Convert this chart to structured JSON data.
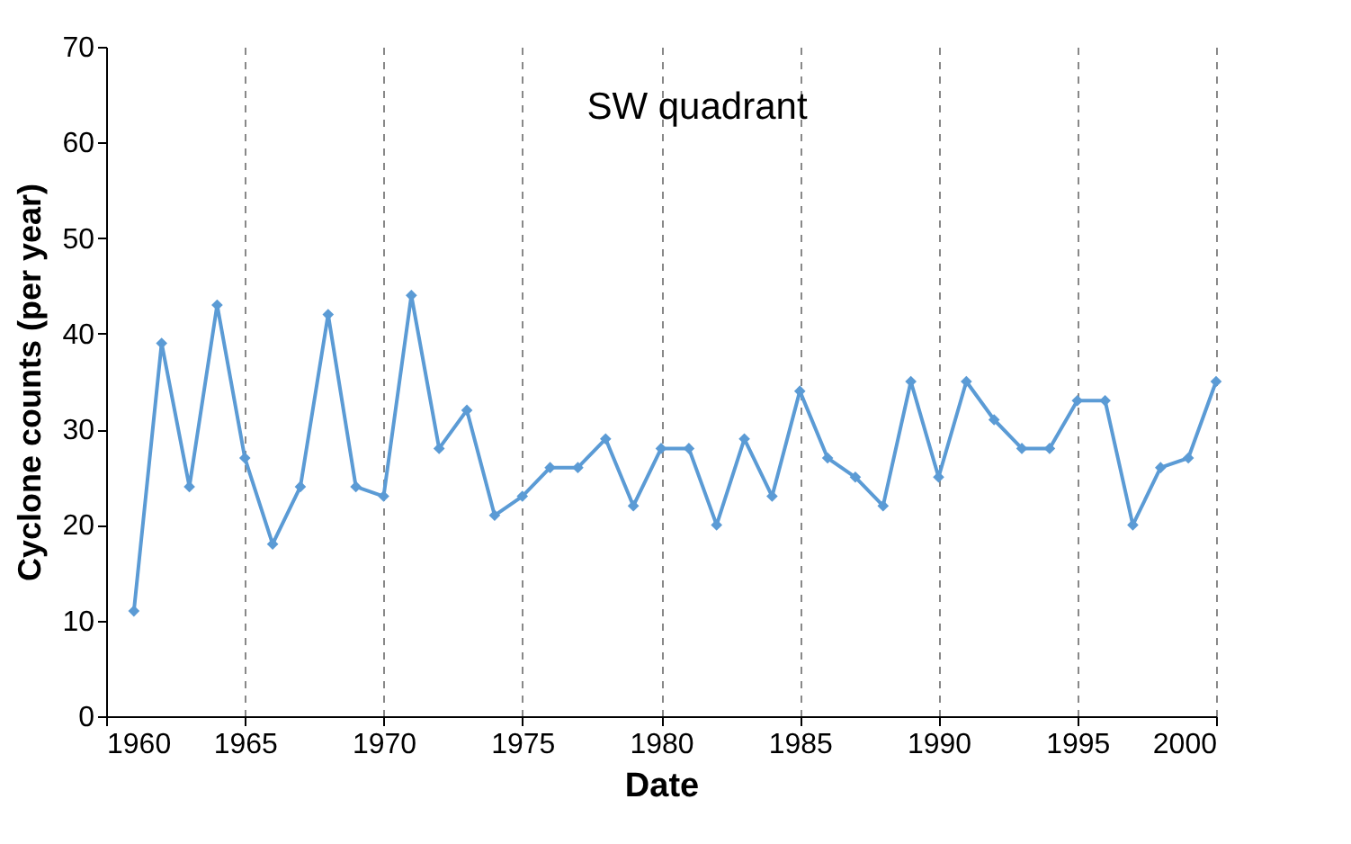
{
  "chart_data": {
    "type": "line",
    "title": "SW quadrant",
    "xlabel": "Date",
    "ylabel": "Cyclone counts (per year)",
    "x": [
      1961,
      1962,
      1963,
      1964,
      1965,
      1966,
      1967,
      1968,
      1969,
      1970,
      1971,
      1972,
      1973,
      1974,
      1975,
      1976,
      1977,
      1978,
      1979,
      1980,
      1981,
      1982,
      1983,
      1984,
      1985,
      1986,
      1987,
      1988,
      1989,
      1990,
      1991,
      1992,
      1993,
      1994,
      1995,
      1996,
      1997,
      1998,
      1999,
      2000
    ],
    "series": [
      {
        "color": "#5b9bd5",
        "values": [
          11,
          39,
          24,
          43,
          27,
          18,
          24,
          42,
          24,
          23,
          44,
          28,
          32,
          21,
          23,
          26,
          26,
          29,
          22,
          28,
          28,
          20,
          29,
          23,
          34,
          27,
          25,
          22,
          35,
          25,
          35,
          31,
          28,
          28,
          33,
          33,
          20,
          26,
          27,
          35
        ]
      }
    ],
    "xlim": [
      1960,
      2000
    ],
    "xticks": [
      1960,
      1965,
      1970,
      1975,
      1980,
      1985,
      1990,
      1995,
      2000
    ],
    "ylim": [
      0,
      70
    ],
    "yticks": [
      0,
      10,
      20,
      30,
      40,
      50,
      60,
      70
    ],
    "grid": "x",
    "marker": "diamond",
    "line_style": "solid",
    "legend": false
  }
}
